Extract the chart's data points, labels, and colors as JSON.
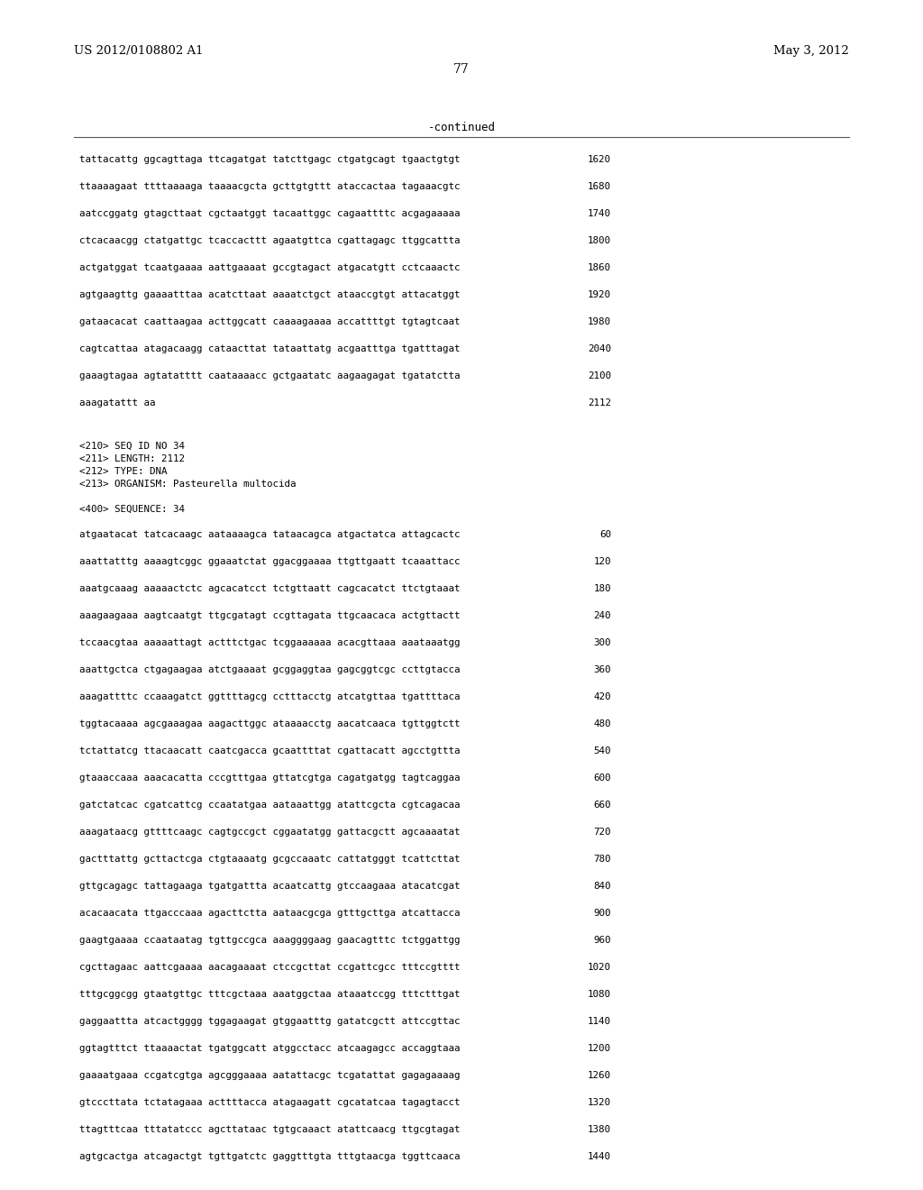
{
  "header_left": "US 2012/0108802 A1",
  "header_right": "May 3, 2012",
  "page_number": "77",
  "continued_label": "-continued",
  "background_color": "#ffffff",
  "text_color": "#000000",
  "sequence_lines_top": [
    [
      "tattacattg ggcagttaga ttcagatgat tatcttgagc ctgatgcagt tgaactgtgt",
      "1620"
    ],
    [
      "ttaaaagaat ttttaaaaga taaaacgcta gcttgtgttt ataccactaa tagaaacgtc",
      "1680"
    ],
    [
      "aatccggatg gtagcttaat cgctaatggt tacaattggc cagaattttc acgagaaaaa",
      "1740"
    ],
    [
      "ctcacaacgg ctatgattgc tcaccacttt agaatgttca cgattagagc ttggcattta",
      "1800"
    ],
    [
      "actgatggat tcaatgaaaa aattgaaaat gccgtagact atgacatgtt cctcaaactc",
      "1860"
    ],
    [
      "agtgaagttg gaaaatttaa acatcttaat aaaatctgct ataaccgtgt attacatggt",
      "1920"
    ],
    [
      "gataacacat caattaagaa acttggcatt caaaagaaaa accattttgt tgtagtcaat",
      "1980"
    ],
    [
      "cagtcattaa atagacaagg cataacttat tataattatg acgaatttga tgatttagat",
      "2040"
    ],
    [
      "gaaagtagaa agtatatttt caataaaacc gctgaatatc aagaagagat tgatatctta",
      "2100"
    ],
    [
      "aaagatattt aa",
      "2112"
    ]
  ],
  "metadata_lines": [
    "<210> SEQ ID NO 34",
    "<211> LENGTH: 2112",
    "<212> TYPE: DNA",
    "<213> ORGANISM: Pasteurella multocida"
  ],
  "sequence_label": "<400> SEQUENCE: 34",
  "sequence_lines_bottom": [
    [
      "atgaatacat tatcacaagc aataaaagca tataacagca atgactatca attagcactc",
      "60"
    ],
    [
      "aaattatttg aaaagtcggc ggaaatctat ggacggaaaa ttgttgaatt tcaaattacc",
      "120"
    ],
    [
      "aaatgcaaag aaaaactctc agcacatcct tctgttaatt cagcacatct ttctgtaaat",
      "180"
    ],
    [
      "aaagaagaaa aagtcaatgt ttgcgatagt ccgttagata ttgcaacaca actgttactt",
      "240"
    ],
    [
      "tccaacgtaa aaaaattagt actttctgac tcggaaaaaa acacgttaaa aaataaatgg",
      "300"
    ],
    [
      "aaattgctca ctgagaagaa atctgaaaat gcggaggtaa gagcggtcgc ccttgtacca",
      "360"
    ],
    [
      "aaagattttc ccaaagatct ggttttagcg cctttacctg atcatgttaa tgattttaca",
      "420"
    ],
    [
      "tggtacaaaa agcgaaagaa aagacttggc ataaaacctg aacatcaaca tgttggtctt",
      "480"
    ],
    [
      "tctattatcg ttacaacatt caatcgacca gcaattttat cgattacatt agcctgttta",
      "540"
    ],
    [
      "gtaaaccaaa aaacacatta cccgtttgaa gttatcgtga cagatgatgg tagtcaggaa",
      "600"
    ],
    [
      "gatctatcac cgatcattcg ccaatatgaa aataaattgg atattcgcta cgtcagacaa",
      "660"
    ],
    [
      "aaagataacg gttttcaagc cagtgccgct cggaatatgg gattacgctt agcaaaatat",
      "720"
    ],
    [
      "gactttattg gcttactcga ctgtaaaatg gcgccaaatc cattatgggt tcattcttat",
      "780"
    ],
    [
      "gttgcagagc tattagaaga tgatgattta acaatcattg gtccaagaaa atacatcgat",
      "840"
    ],
    [
      "acacaacata ttgacccaaa agacttctta aataacgcga gtttgcttga atcattacca",
      "900"
    ],
    [
      "gaagtgaaaa ccaataatag tgttgccgca aaaggggaag gaacagtttc tctggattgg",
      "960"
    ],
    [
      "cgcttagaac aattcgaaaa aacagaaaat ctccgcttat ccgattcgcc tttccgtttt",
      "1020"
    ],
    [
      "tttgcggcgg gtaatgttgc tttcgctaaa aaatggctaa ataaatccgg tttctttgat",
      "1080"
    ],
    [
      "gaggaattta atcactgggg tggagaagat gtggaatttg gatatcgctt attccgttac",
      "1140"
    ],
    [
      "ggtagtttct ttaaaactat tgatggcatt atggcctacc atcaagagcc accaggtaaa",
      "1200"
    ],
    [
      "gaaaatgaaa ccgatcgtga agcgggaaaa aatattacgc tcgatattat gagagaaaag",
      "1260"
    ],
    [
      "gtcccttata tctatagaaa acttttacca atagaagatt cgcatatcaa tagagtacct",
      "1320"
    ],
    [
      "ttagtttcaa tttatatccc agcttataac tgtgcaaact atattcaacg ttgcgtagat",
      "1380"
    ],
    [
      "agtgcactga atcagactgt tgttgatctc gaggtttgta tttgtaacga tggttcaaca",
      "1440"
    ]
  ]
}
